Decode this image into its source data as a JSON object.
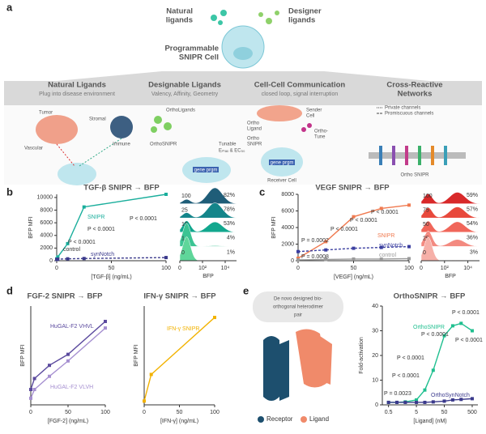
{
  "figure": {
    "panel_labels": [
      "a",
      "b",
      "c",
      "d",
      "e"
    ],
    "schematic": {
      "natural_ligands": [
        "Natural",
        "ligands"
      ],
      "designer_ligands": [
        "Designer",
        "ligands"
      ],
      "cell": [
        "Programmable",
        "SNIPR Cell"
      ],
      "columns": [
        {
          "title": [
            "Natural Ligands"
          ],
          "subtitle": "Plug into disease environment",
          "labels": [
            "Tumor",
            "Stromal",
            "Immune",
            "Vascular"
          ]
        },
        {
          "title": [
            "Designable Ligands"
          ],
          "subtitle": "Valency, Affinity, Geometry",
          "labels": [
            "OrthoLigands",
            "OrthoSNIPR",
            "Tunable",
            "Eₘₐₓ & EC₅₀",
            "gene prgm"
          ]
        },
        {
          "title": [
            "Cell-Cell Communication"
          ],
          "subtitle": "closed loop, signal interruption",
          "labels": [
            "Sender",
            "Cell",
            "Ortho",
            "Ligand",
            "Ortho",
            "SNIPR",
            "Ortho-",
            "Tune",
            "gene prgm",
            "Receiver Cell"
          ]
        },
        {
          "title": [
            "Cross-Reactive",
            "Networks"
          ],
          "labels": [
            "Private channels",
            "Promiscuous channels",
            "Ortho SNIPR"
          ]
        }
      ]
    },
    "heterodimer": {
      "caption_lines": [
        "De novo designed bio-",
        "orthogonal heterodimer",
        "pair"
      ],
      "legend": [
        "Receptor",
        "Ligand"
      ]
    }
  },
  "chart_data": [
    {
      "type": "line",
      "title": "TGF-β SNIPR → BFP",
      "xlabel": "[TGF-β] (ng/mL)",
      "ylabel": "BFP MFI",
      "x": [
        0,
        1,
        10,
        25,
        100
      ],
      "xlim": [
        0,
        100
      ],
      "xticks": [
        0,
        50,
        100
      ],
      "ylim": [
        0,
        10500
      ],
      "yticks": [
        0,
        2000,
        4000,
        6000,
        8000,
        10000
      ],
      "series": [
        {
          "name": "SNIPR",
          "color": "#1aae9c",
          "values": [
            300,
            600,
            2700,
            8500,
            10500
          ]
        },
        {
          "name": "synNotch",
          "color": "#3b3a8c",
          "dash": true,
          "values": [
            200,
            250,
            300,
            350,
            500
          ]
        }
      ],
      "annotations": [
        "P < 0.0001",
        "P < 0.0001",
        "P < 0.0001",
        "control"
      ]
    },
    {
      "type": "ridgeline",
      "xlabel": "BFP",
      "categories": [
        "100",
        "25",
        "10",
        "1",
        "0"
      ],
      "values": [
        82,
        78,
        53,
        4,
        1
      ],
      "value_labels": [
        "82%",
        "78%",
        "53%",
        "4%",
        "1%"
      ],
      "colors": [
        "#1f5d78",
        "#14858a",
        "#12a78e",
        "#3cc493",
        "#5fd69a"
      ],
      "xscale": "log",
      "xlim": [
        1,
        100000
      ],
      "xticks": [
        {
          "value": 1,
          "label": "0"
        },
        {
          "value": 100,
          "label": "10²"
        },
        {
          "value": 10000,
          "label": "10⁴"
        }
      ]
    },
    {
      "type": "line",
      "title": "VEGF SNIPR → BFP",
      "xlabel": "[VEGF] (ng/mL)",
      "ylabel": "BFP MFI",
      "x": [
        0,
        25,
        50,
        75,
        100
      ],
      "xlim": [
        0,
        100
      ],
      "xticks": [
        0,
        50,
        100
      ],
      "ylim": [
        0,
        8000
      ],
      "yticks": [
        0,
        2000,
        4000,
        6000,
        8000
      ],
      "series": [
        {
          "name": "SNIPR",
          "color": "#f07a50",
          "values": [
            300,
            2300,
            5300,
            6300,
            6700
          ]
        },
        {
          "name": "synNotch",
          "color": "#3b3fa0",
          "dash": true,
          "values": [
            1100,
            1300,
            1500,
            1600,
            1700
          ]
        },
        {
          "name": "control",
          "color": "#9a9a9a",
          "values": [
            100,
            150,
            200,
            200,
            250
          ]
        }
      ],
      "annotations": [
        "P < 0.0001",
        "P < 0.0001",
        "P < 0.0001",
        "P = 0.0002",
        "P = 0.0008"
      ]
    },
    {
      "type": "ridgeline",
      "xlabel": "BFP",
      "categories": [
        "100",
        "75",
        "50",
        "25",
        "0"
      ],
      "values": [
        59,
        57,
        54,
        36,
        3
      ],
      "value_labels": [
        "59%",
        "57%",
        "54%",
        "36%",
        "3%"
      ],
      "colors": [
        "#d8292a",
        "#e8493c",
        "#f0665a",
        "#f38a80",
        "#f6b0a8"
      ],
      "xscale": "log",
      "xlim": [
        1,
        100000
      ],
      "xticks": [
        {
          "value": 1,
          "label": "0"
        },
        {
          "value": 100,
          "label": "10²"
        },
        {
          "value": 10000,
          "label": "10⁴"
        }
      ]
    },
    {
      "type": "line",
      "title": "FGF-2 SNIPR → BFP",
      "xlabel": "[FGF-2] (ng/mL)",
      "ylabel": "BFP MFI",
      "x": [
        0,
        5,
        25,
        50,
        100
      ],
      "xlim": [
        0,
        100
      ],
      "xticks": [
        0,
        50,
        100
      ],
      "ylim": [
        0,
        4500
      ],
      "series": [
        {
          "name": "HuGAL-F2 VHVL",
          "color": "#5b4a9e",
          "values": [
            700,
            1200,
            1800,
            2300,
            3800
          ]
        },
        {
          "name": "HuGAL-F2 VLVH",
          "color": "#a58fd0",
          "values": [
            300,
            700,
            1300,
            2000,
            3500
          ]
        }
      ]
    },
    {
      "type": "line",
      "title": "IFN-γ SNIPR → BFP",
      "xlabel": "[IFN-γ] (ng/mL)",
      "ylabel": "BFP MFI",
      "x": [
        0,
        10,
        100
      ],
      "xlim": [
        0,
        100
      ],
      "xticks": [
        0,
        50,
        100
      ],
      "ylim": [
        0,
        2600
      ],
      "series": [
        {
          "name": "IFN-γ SNIPR",
          "color": "#f2b200",
          "values": [
            100,
            800,
            2300
          ]
        }
      ]
    },
    {
      "type": "line",
      "title": "OrthoSNIPR → BFP",
      "xlabel": "[Ligand] (nM)",
      "ylabel": "Fold-activation",
      "xscale": "log",
      "x": [
        0.5,
        1,
        2,
        5,
        10,
        20,
        50,
        100,
        200,
        500
      ],
      "xlim": [
        0.3,
        800
      ],
      "xticks": [
        0.5,
        5,
        50,
        500
      ],
      "ylim": [
        0,
        40
      ],
      "yticks": [
        0,
        10,
        20,
        30,
        40
      ],
      "series": [
        {
          "name": "OrthoSNIPR",
          "color": "#1fbf8f",
          "values": [
            1,
            1,
            1.2,
            2,
            6,
            14,
            28,
            32,
            33,
            30
          ]
        },
        {
          "name": "OrthoSynNotch",
          "color": "#3b3a8c",
          "values": [
            1,
            1,
            1,
            1,
            1,
            1.2,
            1.5,
            2,
            2.2,
            2.5
          ]
        }
      ],
      "annotations": [
        "P < 0.0001",
        "P < 0.0001",
        "P < 0.0001",
        "P < 0.0001",
        "P < 0.0001",
        "P = 0.0023"
      ]
    }
  ]
}
